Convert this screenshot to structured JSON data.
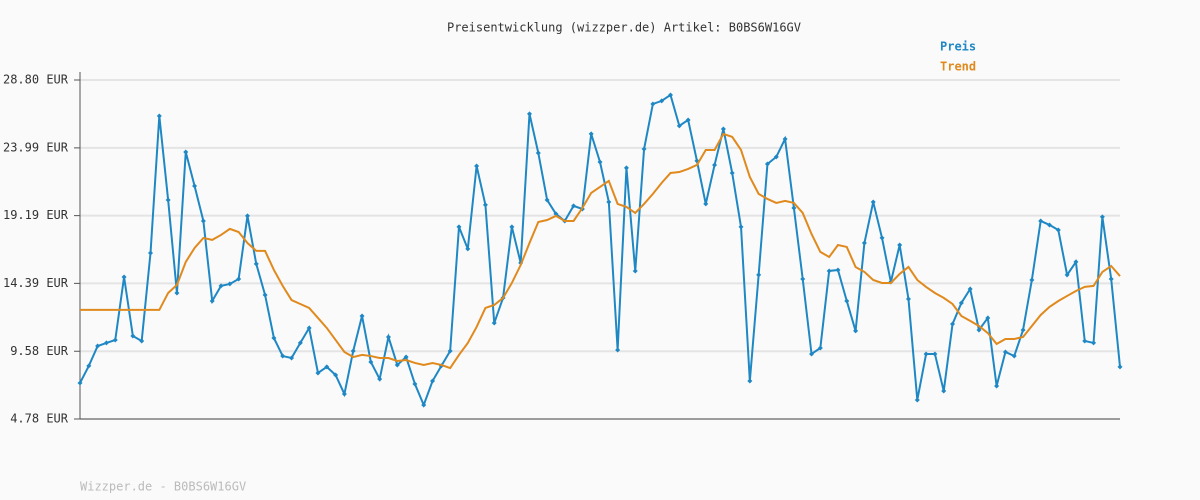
{
  "chart_data": {
    "type": "line",
    "title": "Preisentwicklung (wizzper.de) Artikel: B0BS6W16GV",
    "footer": "Wizzper.de - B0BS6W16GV",
    "ylim": [
      4.78,
      28.8
    ],
    "yticks": [
      {
        "value": 4.78,
        "label": "4.78 EUR"
      },
      {
        "value": 9.58,
        "label": "9.58 EUR"
      },
      {
        "value": 14.39,
        "label": "14.39 EUR"
      },
      {
        "value": 19.19,
        "label": "19.19 EUR"
      },
      {
        "value": 23.99,
        "label": "23.99 EUR"
      },
      {
        "value": 28.8,
        "label": "28.80 EUR"
      }
    ],
    "grid": true,
    "series": [
      {
        "name": "Preis",
        "color": "#1f88c4",
        "markers": true,
        "values": [
          7.33,
          8.54,
          9.95,
          10.17,
          10.38,
          14.84,
          10.66,
          10.31,
          16.54,
          26.25,
          20.3,
          13.71,
          23.7,
          21.29,
          18.81,
          13.14,
          14.21,
          14.35,
          14.7,
          19.17,
          15.77,
          13.57,
          10.52,
          9.24,
          9.1,
          10.17,
          11.23,
          8.04,
          8.47,
          7.9,
          6.55,
          9.6,
          12.08,
          8.82,
          7.61,
          10.59,
          8.61,
          9.17,
          7.26,
          5.77,
          7.47,
          8.54,
          9.6,
          18.39,
          16.83,
          22.71,
          19.95,
          11.58,
          13.36,
          18.39,
          15.84,
          26.4,
          23.63,
          20.3,
          19.31,
          18.81,
          19.88,
          19.66,
          24.98,
          22.99,
          20.16,
          9.67,
          22.57,
          15.27,
          23.91,
          27.1,
          27.32,
          27.74,
          25.55,
          25.97,
          23.07,
          20.02,
          22.78,
          25.33,
          22.21,
          18.39,
          7.47,
          14.99,
          22.85,
          23.35,
          24.62,
          19.73,
          14.7,
          9.39,
          9.81,
          15.27,
          15.34,
          13.14,
          11.02,
          17.25,
          20.16,
          17.61,
          14.49,
          17.11,
          13.28,
          6.13,
          9.39,
          9.39,
          6.76,
          11.51,
          13.0,
          13.99,
          11.09,
          11.94,
          7.12,
          9.53,
          9.24,
          11.09,
          14.63,
          18.81,
          18.53,
          18.17,
          14.99,
          15.91,
          10.31,
          10.17,
          19.1,
          14.7,
          8.47
        ]
      },
      {
        "name": "Trend",
        "color": "#e08a1e",
        "markers": false,
        "values": [
          12.51,
          12.51,
          12.51,
          12.51,
          12.51,
          12.51,
          12.51,
          12.51,
          12.51,
          12.51,
          13.71,
          14.28,
          15.91,
          16.9,
          17.61,
          17.47,
          17.82,
          18.25,
          18.03,
          17.25,
          16.69,
          16.69,
          15.34,
          14.21,
          13.21,
          12.93,
          12.65,
          11.94,
          11.23,
          10.38,
          9.53,
          9.17,
          9.32,
          9.24,
          9.1,
          9.1,
          8.89,
          8.96,
          8.75,
          8.61,
          8.75,
          8.61,
          8.39,
          9.32,
          10.17,
          11.3,
          12.65,
          12.86,
          13.36,
          14.42,
          15.69,
          17.25,
          18.74,
          18.88,
          19.17,
          18.81,
          18.81,
          19.73,
          20.8,
          21.22,
          21.65,
          20.02,
          19.81,
          19.38,
          20.02,
          20.73,
          21.51,
          22.21,
          22.28,
          22.5,
          22.78,
          23.84,
          23.84,
          24.98,
          24.77,
          23.84,
          21.93,
          20.73,
          20.37,
          20.09,
          20.23,
          20.09,
          19.38,
          17.89,
          16.62,
          16.26,
          17.11,
          16.97,
          15.55,
          15.2,
          14.63,
          14.42,
          14.42,
          15.06,
          15.55,
          14.63,
          14.14,
          13.71,
          13.36,
          12.93,
          12.08,
          11.73,
          11.37,
          10.87,
          10.1,
          10.45,
          10.45,
          10.59,
          11.37,
          12.15,
          12.72,
          13.14,
          13.5,
          13.85,
          14.14,
          14.21,
          15.2,
          15.62,
          14.91
        ]
      }
    ]
  }
}
